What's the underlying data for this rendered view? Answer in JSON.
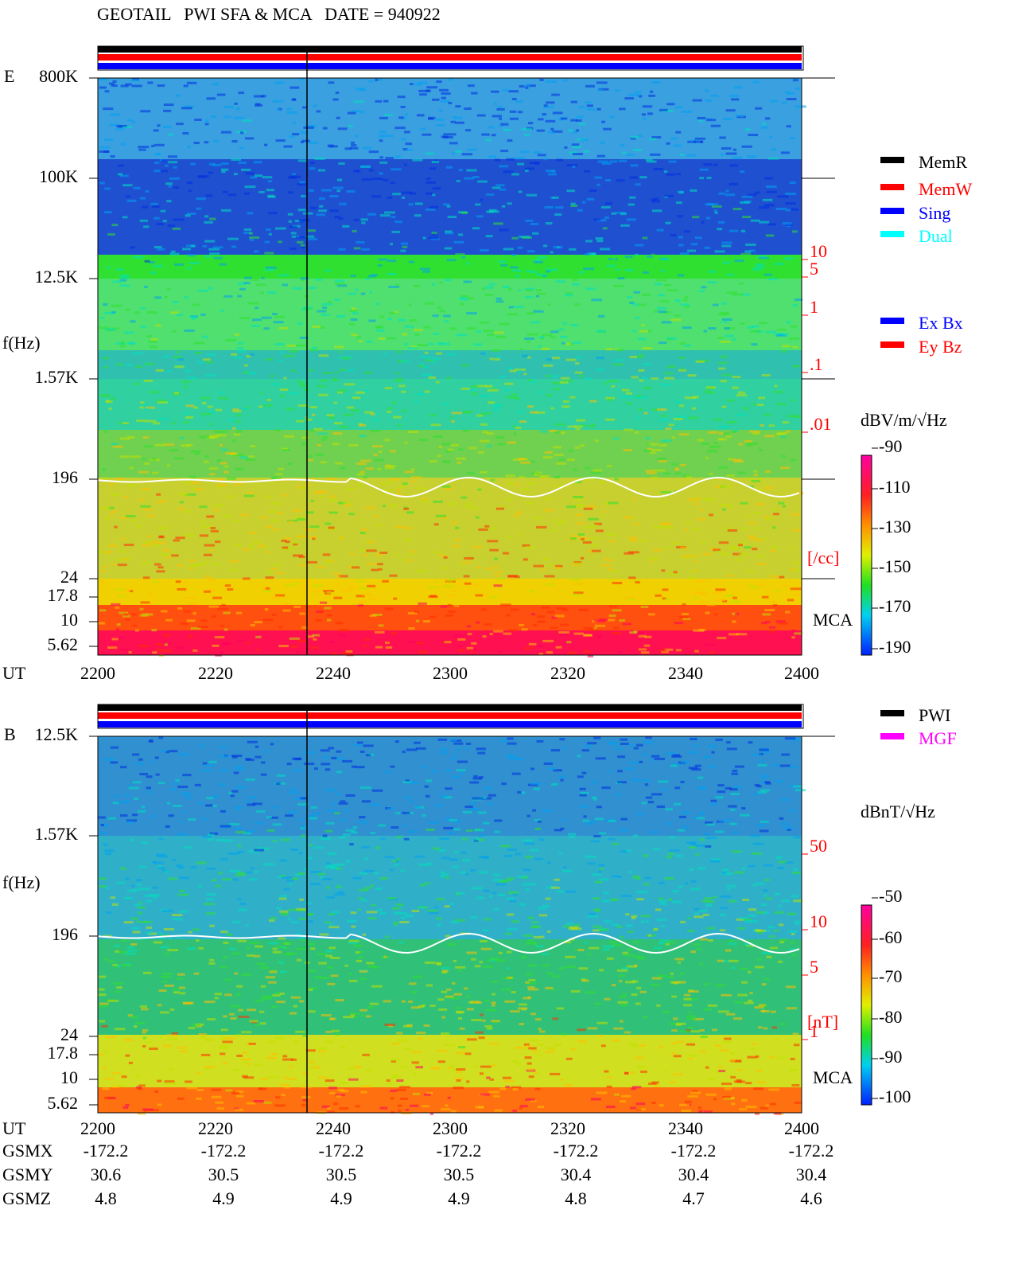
{
  "header": {
    "title": "GEOTAIL   PWI SFA & MCA   DATE = 940922"
  },
  "panels": [
    {
      "component": "E",
      "freq_ticks": [
        "800K",
        "100K",
        "12.5K",
        "1.57K",
        "196",
        "24",
        "17.8",
        "10",
        "5.62"
      ],
      "freq_label": "f(Hz)",
      "time_label": "UT",
      "time_ticks": [
        "2200",
        "2220",
        "2240",
        "2300",
        "2320",
        "2340",
        "2400"
      ],
      "density_ticks": [
        "10",
        "5",
        "1",
        ".1",
        ".01"
      ],
      "density_unit": "[/cc]",
      "mca_label": "MCA",
      "legend": [
        {
          "label": "MemR",
          "color": "#000000"
        },
        {
          "label": "MemW",
          "color": "#ff0000"
        },
        {
          "label": "Sing",
          "color": "#0000ff"
        },
        {
          "label": "Dual",
          "color": "#00ffff"
        }
      ],
      "legend2": [
        {
          "label": "Ex Bx",
          "color": "#0000ff"
        },
        {
          "label": "Ey Bz",
          "color": "#ff0000"
        }
      ],
      "colorbar_unit": "dBV/m/√Hz",
      "colorbar_ticks": [
        "-90",
        "-110",
        "-130",
        "-150",
        "-170",
        "-190"
      ]
    },
    {
      "component": "B",
      "freq_ticks": [
        "12.5K",
        "1.57K",
        "196",
        "24",
        "17.8",
        "10",
        "5.62"
      ],
      "freq_label": "f(Hz)",
      "time_label": "UT",
      "time_ticks": [
        "2200",
        "2220",
        "2240",
        "2300",
        "2320",
        "2340",
        "2400"
      ],
      "density_ticks": [
        "50",
        "10",
        "5",
        "1"
      ],
      "density_unit": "[nT]",
      "mca_label": "MCA",
      "legend": [
        {
          "label": "PWI",
          "color": "#000000"
        },
        {
          "label": "MGF",
          "color": "#ff00ff"
        }
      ],
      "colorbar_unit": "dBnT/√Hz",
      "colorbar_ticks": [
        "-50",
        "-60",
        "-70",
        "-80",
        "-90",
        "-100"
      ]
    }
  ],
  "orbit": {
    "rows": [
      {
        "label": "GSMX",
        "values": [
          "-172.2",
          "-172.2",
          "-172.2",
          "-172.2",
          "-172.2",
          "-172.2",
          "-172.2"
        ]
      },
      {
        "label": "GSMY",
        "values": [
          "30.6",
          "30.5",
          "30.5",
          "30.5",
          "30.4",
          "30.4",
          "30.4"
        ]
      },
      {
        "label": "GSMZ",
        "values": [
          "4.8",
          "4.9",
          "4.9",
          "4.9",
          "4.8",
          "4.7",
          "4.6"
        ]
      }
    ]
  }
}
